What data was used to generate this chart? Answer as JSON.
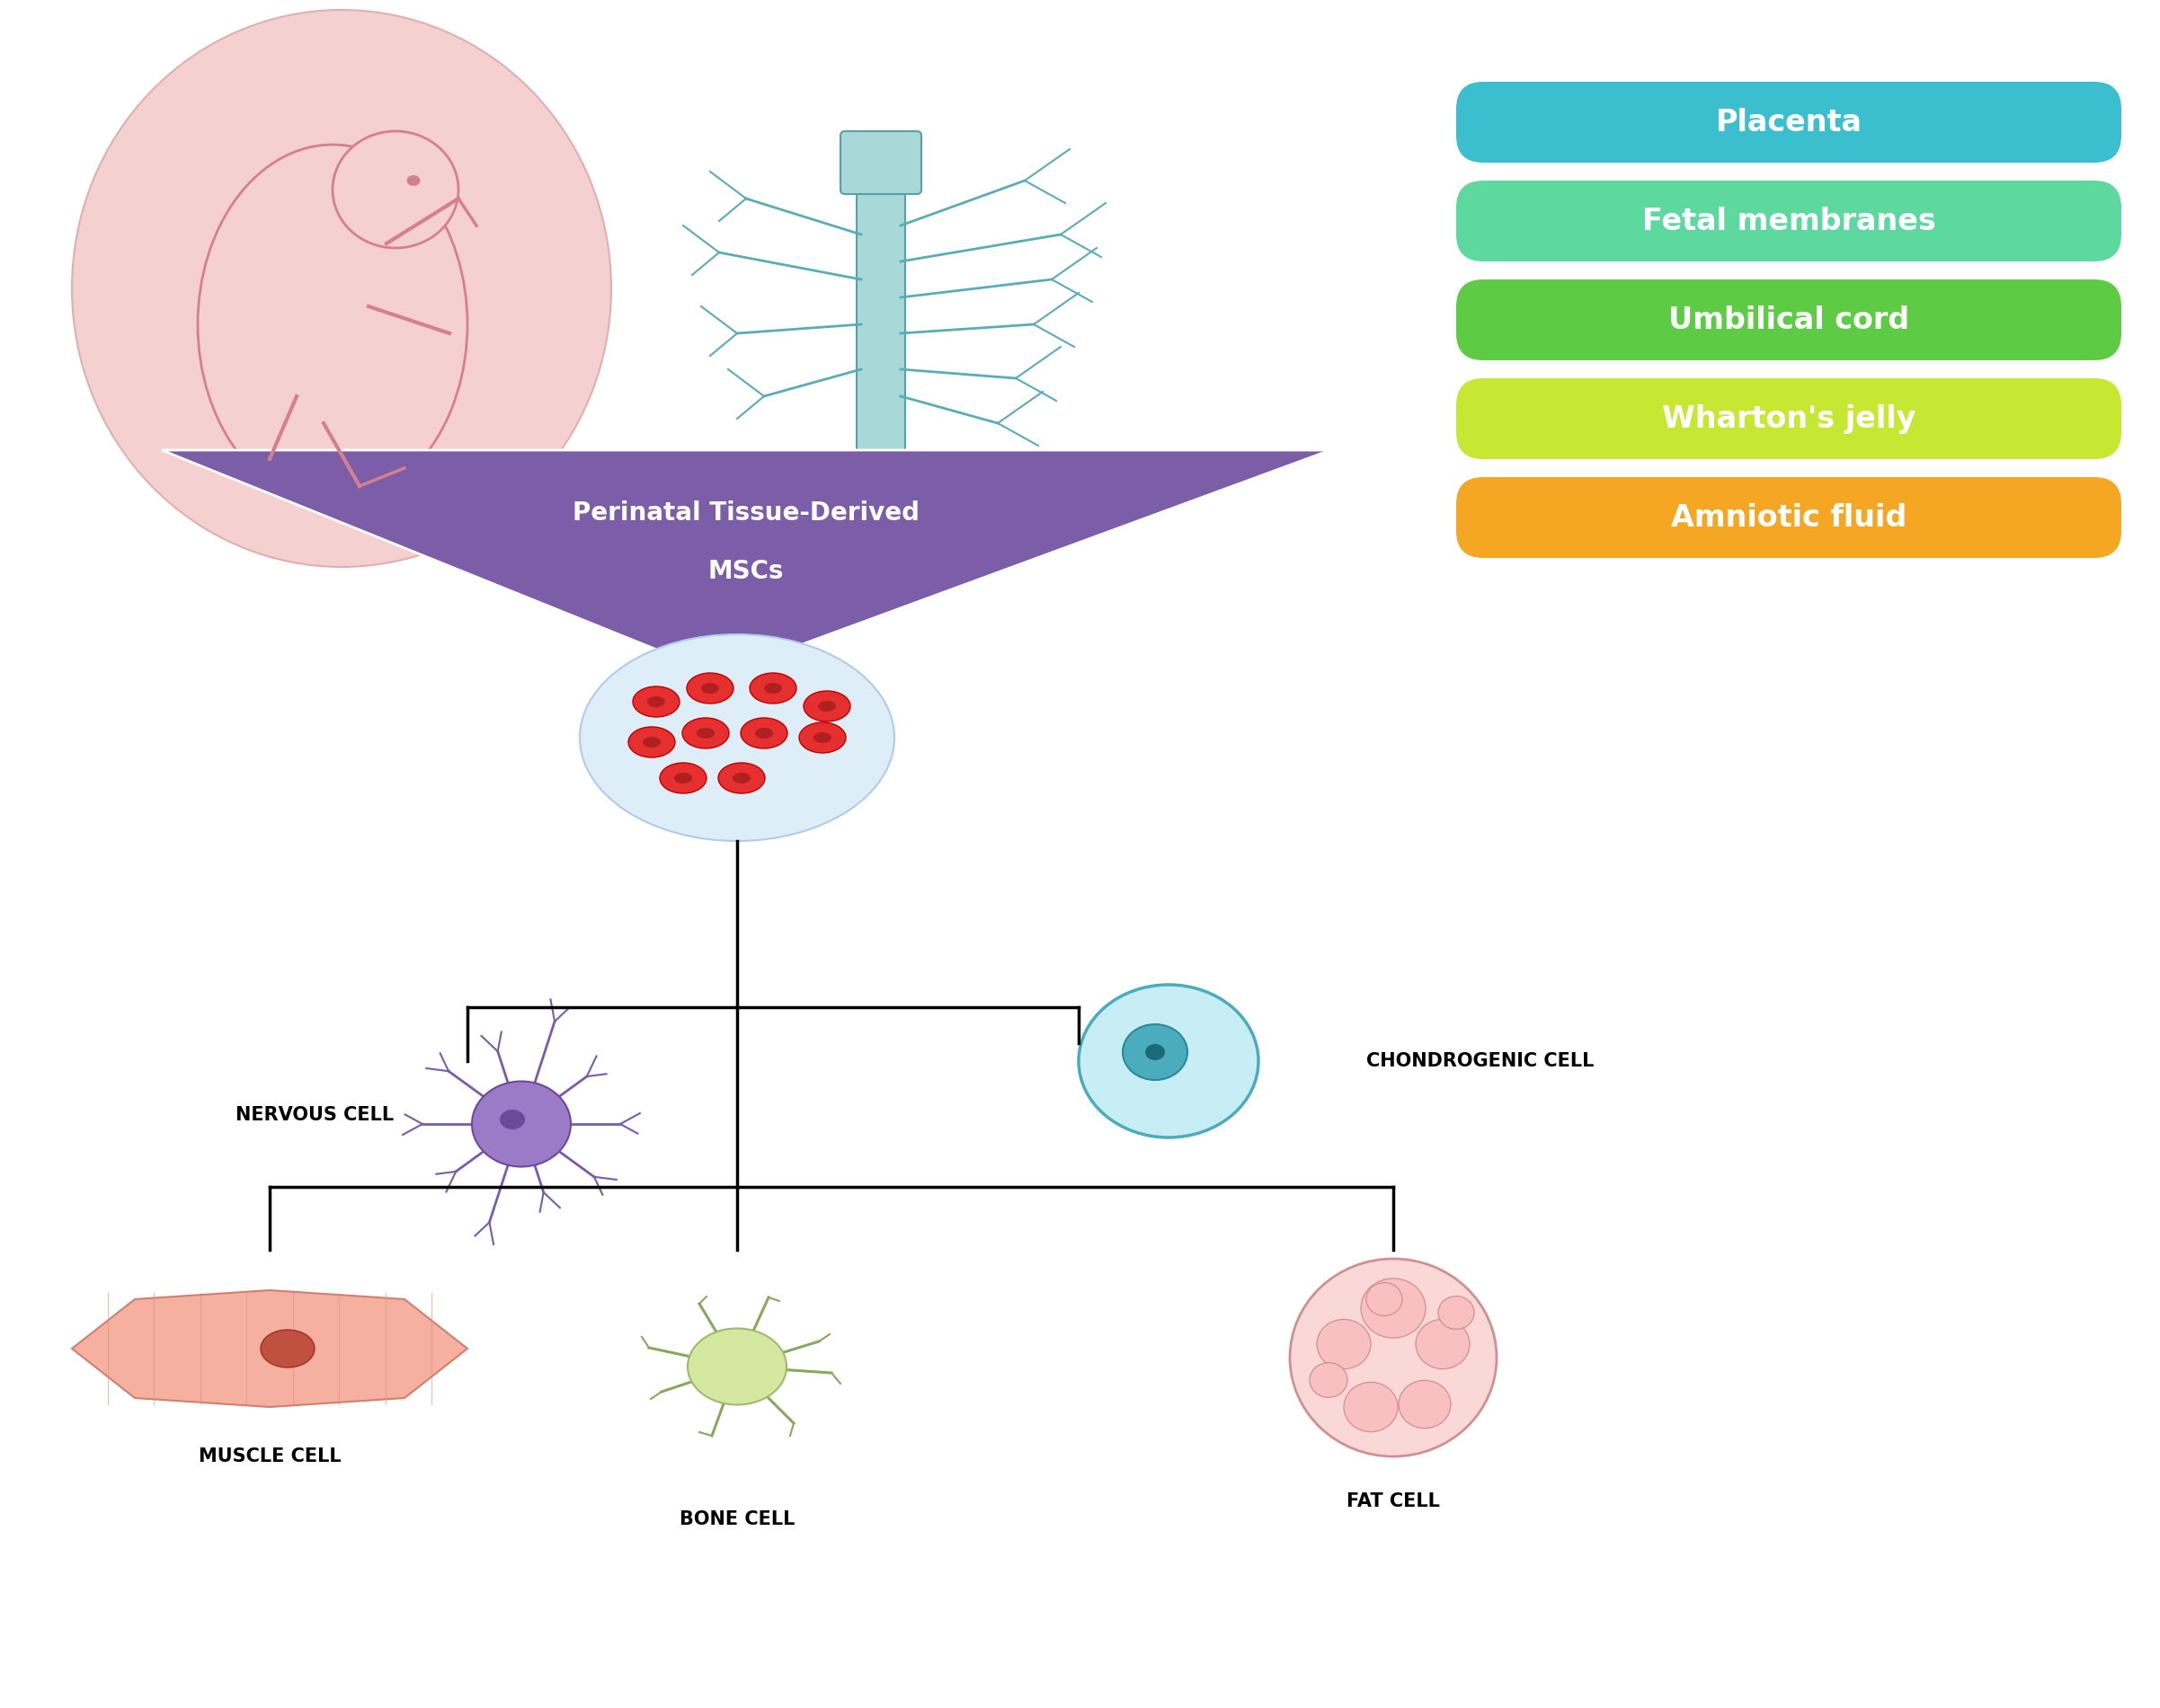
{
  "background_color": "#ffffff",
  "source_boxes": [
    {
      "label": "Placenta",
      "color": "#3bbfce"
    },
    {
      "label": "Fetal membranes",
      "color": "#5dd9a0"
    },
    {
      "label": "Umbilical cord",
      "color": "#5dcc44"
    },
    {
      "label": "Wharton's jelly",
      "color": "#c6e832"
    },
    {
      "label": "Amniotic fluid",
      "color": "#f5a623"
    }
  ],
  "arrow_label_line1": "Perinatal Tissue-Derived",
  "arrow_label_line2": "MSCs",
  "arrow_color": "#7b5ea7",
  "cell_labels": [
    "NERVOUS CELL",
    "CHONDROGENIC CELL",
    "MUSCLE CELL",
    "BONE CELL",
    "FAT CELL"
  ],
  "box_text_color": "#ffffff",
  "label_color": "#000000"
}
